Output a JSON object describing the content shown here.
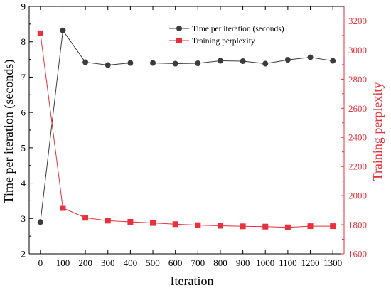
{
  "chart_data": {
    "type": "line",
    "x": [
      0,
      100,
      200,
      300,
      400,
      500,
      600,
      700,
      800,
      900,
      1000,
      1100,
      1200,
      1300
    ],
    "xlabel": "Iteration",
    "xlim": [
      -50,
      1350
    ],
    "xticks": [
      0,
      100,
      200,
      300,
      400,
      500,
      600,
      700,
      800,
      900,
      1000,
      1100,
      1200,
      1300
    ],
    "ylabel": "Time per iteration (seconds)",
    "ylim": [
      2,
      9
    ],
    "yticks": [
      2,
      3,
      4,
      5,
      6,
      7,
      8,
      9
    ],
    "y2label": "Training perplexity",
    "y2lim": [
      1600,
      3300
    ],
    "y2ticks": [
      1600,
      1800,
      2000,
      2200,
      2400,
      2600,
      2800,
      3000,
      3200
    ],
    "grid": false,
    "legend_position": "top-right",
    "series": [
      {
        "name": "Time per iteration (seconds)",
        "axis": "left",
        "color": "#3c3c3c",
        "marker": "circle",
        "values": [
          2.9,
          8.32,
          7.42,
          7.34,
          7.4,
          7.4,
          7.38,
          7.39,
          7.46,
          7.45,
          7.38,
          7.49,
          7.56,
          7.46
        ]
      },
      {
        "name": "Training perplexity",
        "axis": "right",
        "color": "#e8313a",
        "marker": "square",
        "values": [
          3115,
          1915,
          1848,
          1828,
          1820,
          1812,
          1804,
          1797,
          1793,
          1789,
          1787,
          1782,
          1790,
          1790
        ]
      }
    ]
  }
}
